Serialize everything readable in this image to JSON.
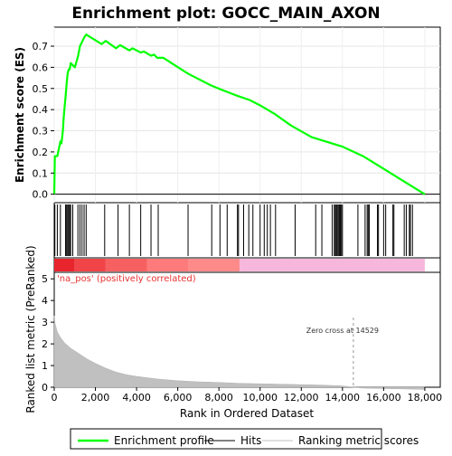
{
  "chart_data": {
    "type": "line",
    "title": "Enrichment plot: GOCC_MAIN_AXON",
    "xlabel": "Rank in Ordered Dataset",
    "ylabel_top": "Enrichment score (ES)",
    "ylabel_bottom": "Ranked list metric (PreRanked)",
    "x_ticks": [
      "0",
      "2,000",
      "4,000",
      "6,000",
      "8,000",
      "10,000",
      "12,000",
      "14,000",
      "16,000",
      "18,000"
    ],
    "x_tick_values": [
      0,
      2000,
      4000,
      6000,
      8000,
      10000,
      12000,
      14000,
      16000,
      18000
    ],
    "xlim": [
      0,
      18750
    ],
    "es_ticks": [
      "0.0",
      "0.1",
      "0.2",
      "0.3",
      "0.4",
      "0.5",
      "0.6",
      "0.7"
    ],
    "es_tick_values": [
      0.0,
      0.1,
      0.2,
      0.3,
      0.4,
      0.5,
      0.6,
      0.7
    ],
    "es_ylim": [
      -0.04,
      0.79
    ],
    "metric_ticks": [
      "0",
      "1",
      "2",
      "3",
      "4",
      "5"
    ],
    "metric_tick_values": [
      0,
      1,
      2,
      3,
      4,
      5
    ],
    "metric_ylim": [
      0,
      5.3
    ],
    "enrichment_profile": {
      "x": [
        0,
        30,
        150,
        300,
        350,
        420,
        450,
        500,
        550,
        600,
        650,
        700,
        750,
        800,
        900,
        1000,
        1150,
        1250,
        1350,
        1450,
        1550,
        2300,
        2500,
        3000,
        3200,
        3650,
        3800,
        4200,
        4350,
        4700,
        4850,
        5000,
        5300,
        6500,
        7600,
        8100,
        8900,
        9500,
        10000,
        10700,
        11500,
        12500,
        13500,
        14000,
        15000,
        16000,
        17000,
        18000
      ],
      "y": [
        0.0,
        0.18,
        0.18,
        0.25,
        0.24,
        0.3,
        0.35,
        0.41,
        0.46,
        0.52,
        0.57,
        0.59,
        0.59,
        0.62,
        0.61,
        0.6,
        0.65,
        0.7,
        0.72,
        0.74,
        0.755,
        0.71,
        0.725,
        0.69,
        0.705,
        0.68,
        0.69,
        0.67,
        0.675,
        0.655,
        0.66,
        0.645,
        0.645,
        0.57,
        0.515,
        0.495,
        0.465,
        0.445,
        0.42,
        0.38,
        0.325,
        0.27,
        0.24,
        0.225,
        0.18,
        0.12,
        0.06,
        0.0
      ]
    },
    "hits": [
      30,
      150,
      300,
      550,
      600,
      650,
      700,
      750,
      800,
      900,
      1150,
      1250,
      1350,
      1450,
      1550,
      2450,
      3100,
      3650,
      4200,
      4700,
      5050,
      6500,
      7650,
      8050,
      8400,
      8900,
      8950,
      9200,
      9450,
      9650,
      10000,
      10200,
      10350,
      10500,
      10750,
      11700,
      12700,
      13000,
      13500,
      13600,
      13650,
      13700,
      13750,
      13800,
      13850,
      13900,
      13950,
      14000,
      14750,
      15100,
      15200,
      15250,
      15300,
      15700,
      15750,
      16000,
      16100,
      16450,
      16500,
      17000,
      17100,
      17250,
      17300,
      17400
    ],
    "ranked_metric": {
      "x": [
        0,
        50,
        150,
        300,
        500,
        800,
        1200,
        1600,
        2000,
        2500,
        3000,
        3500,
        4000,
        5000,
        6000,
        7000,
        8000,
        9000,
        10000,
        11000,
        12000,
        13000,
        14000,
        14529,
        15000,
        16000,
        17000,
        18000
      ],
      "y": [
        3.3,
        2.9,
        2.55,
        2.3,
        2.05,
        1.8,
        1.55,
        1.3,
        1.1,
        0.88,
        0.7,
        0.58,
        0.5,
        0.38,
        0.3,
        0.25,
        0.22,
        0.18,
        0.16,
        0.14,
        0.12,
        0.1,
        0.06,
        0.0,
        -0.04,
        -0.06,
        -0.08,
        -0.1
      ]
    },
    "positive_label": "'na_pos' (positively correlated)",
    "zero_cross_label": "Zero cross at 14529",
    "zero_cross": 14529,
    "colors": {
      "profile": "#00ff00",
      "hits": "#000000",
      "metric_fill": "#c0c0c0",
      "positive_text": "#e83030",
      "heat_strong_positive": "#e8242c",
      "heat_positive": "#ff8a8a",
      "heat_neutral": "#f7b6dc"
    },
    "legend": {
      "items": [
        {
          "label": "Enrichment profile",
          "color": "#00ff00",
          "kind": "line-thick"
        },
        {
          "label": "Hits",
          "color": "#000000",
          "kind": "line-thin"
        },
        {
          "label": "Ranking metric scores",
          "color": "#c0c0c0",
          "kind": "line-thin"
        }
      ]
    }
  }
}
